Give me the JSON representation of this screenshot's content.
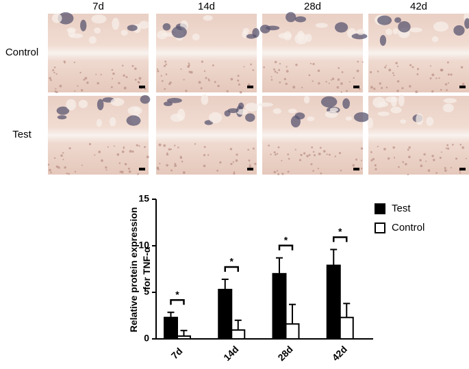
{
  "panels": {
    "columns": [
      "7d",
      "14d",
      "28d",
      "42d"
    ],
    "rows": [
      "Control",
      "Test"
    ]
  },
  "chart_data": {
    "type": "bar",
    "ylabel": [
      "Relative protein expression",
      "for TNF-α"
    ],
    "categories": [
      "7d",
      "14d",
      "28d",
      "42d"
    ],
    "series": [
      {
        "name": "Test",
        "color": "#000000",
        "values": [
          2.3,
          5.3,
          7.0,
          7.9
        ],
        "errors": [
          0.55,
          1.1,
          1.7,
          1.7
        ]
      },
      {
        "name": "Control",
        "color": "#ffffff",
        "values": [
          0.3,
          0.95,
          1.6,
          2.3
        ],
        "errors": [
          0.6,
          1.05,
          2.1,
          1.5
        ]
      }
    ],
    "significance": [
      "*",
      "*",
      "*",
      "*"
    ],
    "ylim": [
      0,
      15
    ],
    "yticks": [
      0,
      5,
      10,
      15
    ],
    "legend": "upper right"
  }
}
